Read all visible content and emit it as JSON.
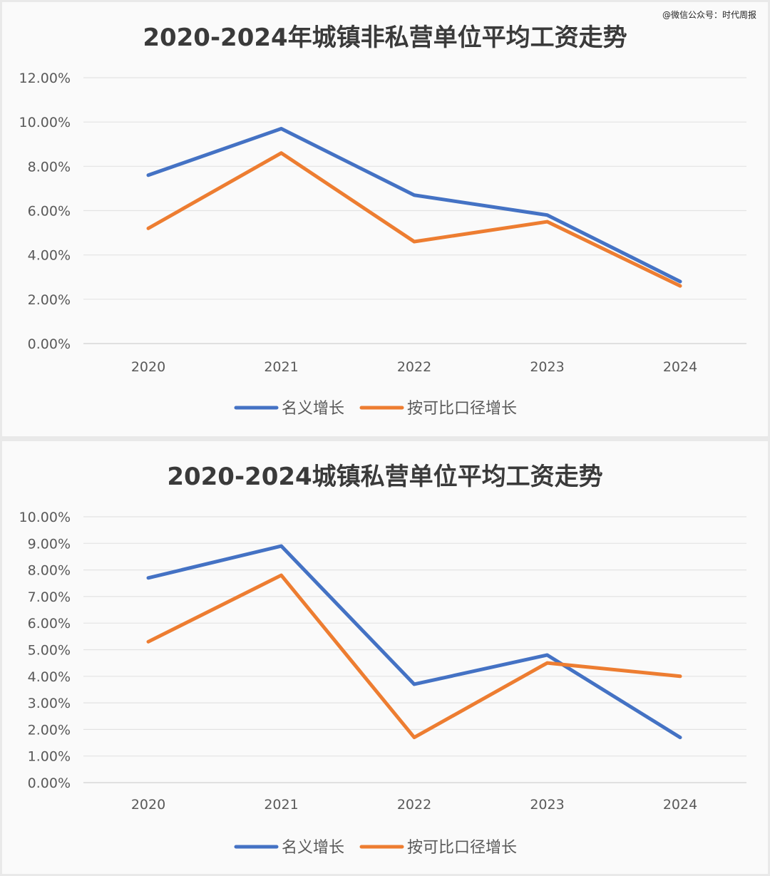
{
  "watermark": "@微信公众号：时代周报",
  "chart_data": [
    {
      "type": "line",
      "title": "2020-2024年城镇非私营单位平均工资走势",
      "categories": [
        "2020",
        "2021",
        "2022",
        "2023",
        "2024"
      ],
      "ylim": [
        0,
        12
      ],
      "yticks": [
        "0.00%",
        "2.00%",
        "4.00%",
        "6.00%",
        "8.00%",
        "10.00%",
        "12.00%"
      ],
      "grid": true,
      "legend_position": "bottom",
      "series": [
        {
          "name": "名义增长",
          "color": "#4472C4",
          "values": [
            7.6,
            9.7,
            6.7,
            5.8,
            2.8
          ]
        },
        {
          "name": "按可比口径增长",
          "color": "#ED7D31",
          "values": [
            5.2,
            8.6,
            4.6,
            5.5,
            2.6
          ]
        }
      ]
    },
    {
      "type": "line",
      "title": "2020-2024城镇私营单位平均工资走势",
      "categories": [
        "2020",
        "2021",
        "2022",
        "2023",
        "2024"
      ],
      "ylim": [
        0,
        10
      ],
      "yticks": [
        "0.00%",
        "1.00%",
        "2.00%",
        "3.00%",
        "4.00%",
        "5.00%",
        "6.00%",
        "7.00%",
        "8.00%",
        "9.00%",
        "10.00%"
      ],
      "grid": true,
      "legend_position": "bottom",
      "series": [
        {
          "name": "名义增长",
          "color": "#4472C4",
          "values": [
            7.7,
            8.9,
            3.7,
            4.8,
            1.7
          ]
        },
        {
          "name": "按可比口径增长",
          "color": "#ED7D31",
          "values": [
            5.3,
            7.8,
            1.7,
            4.5,
            4.0
          ]
        }
      ]
    }
  ]
}
